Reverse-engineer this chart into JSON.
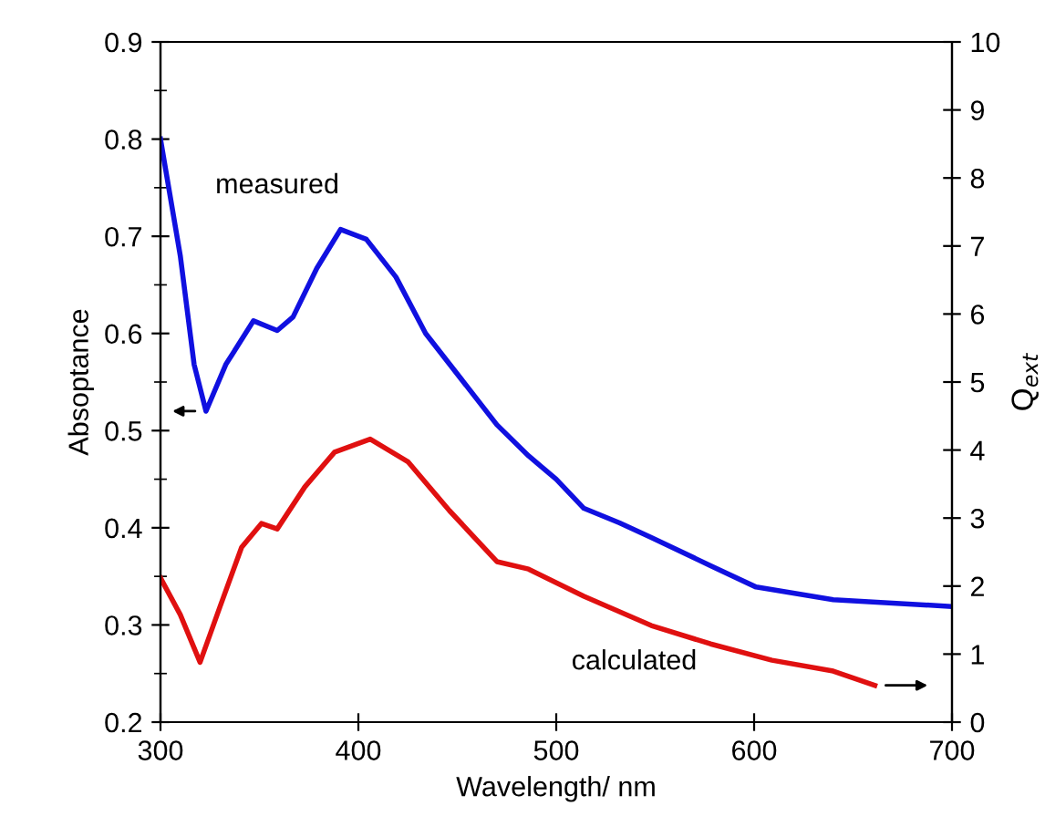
{
  "chart_data": {
    "type": "line",
    "xlabel": "Wavelength/ nm",
    "ylabel": "Absoptance",
    "y2label": "Q$_{ext}$",
    "xlim": [
      300,
      700
    ],
    "xticks": [
      300,
      400,
      500,
      600,
      700
    ],
    "ylim": [
      0.2,
      0.9
    ],
    "yticks": [
      0.2,
      0.3,
      0.4,
      0.5,
      0.6,
      0.7,
      0.8,
      0.9
    ],
    "y2lim": [
      0,
      10
    ],
    "y2ticks": [
      0,
      1,
      2,
      3,
      4,
      5,
      6,
      7,
      8,
      9,
      10
    ],
    "series": [
      {
        "color": "#1010e0",
        "x": [
          300,
          310,
          317,
          323,
          333,
          347,
          359,
          367,
          379,
          391,
          404,
          419,
          434,
          470,
          486,
          500,
          514,
          532,
          548,
          578,
          601,
          640,
          700
        ],
        "values": [
          0.8,
          0.68,
          0.568,
          0.52,
          0.568,
          0.613,
          0.603,
          0.617,
          0.667,
          0.707,
          0.697,
          0.658,
          0.6,
          0.506,
          0.474,
          0.45,
          0.42,
          0.405,
          0.39,
          0.361,
          0.339,
          0.326,
          0.319
        ]
      },
      {
        "color": "#e01010",
        "axis": "y2",
        "x": [
          300,
          310,
          320,
          330,
          341,
          351,
          359,
          373,
          388,
          406,
          425,
          446,
          470,
          486,
          514,
          548,
          578,
          609,
          640,
          661
        ],
        "values": [
          2.12,
          1.58,
          0.88,
          1.69,
          2.57,
          2.92,
          2.84,
          3.46,
          3.97,
          4.16,
          3.83,
          3.11,
          2.36,
          2.25,
          1.85,
          1.42,
          1.15,
          0.91,
          0.75,
          0.54
        ]
      }
    ],
    "annotations": [
      "measured",
      "calculated"
    ]
  }
}
